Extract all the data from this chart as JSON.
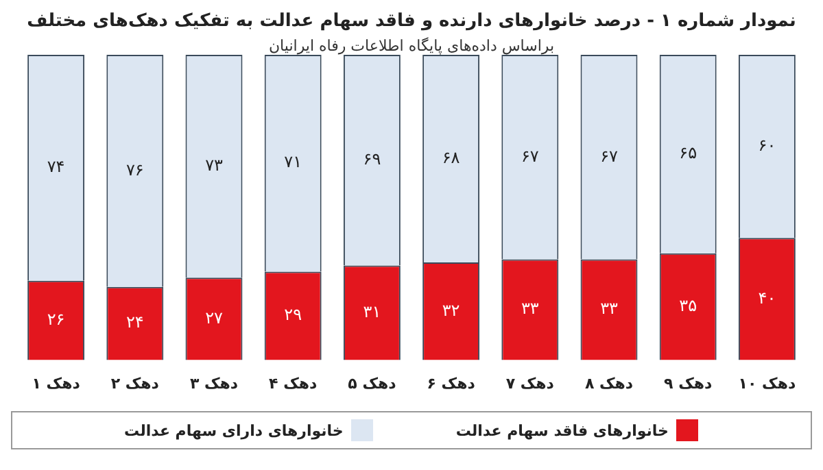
{
  "chart_data": {
    "type": "bar",
    "stacked": true,
    "title": "نمودار شماره ۱ - درصد خانوارهای دارنده و فاقد سهام عدالت به تفکیک دهک‌های مختلف",
    "subtitle": "براساس داده‌های پایگاه اطلاعات رفاه ایرانیان",
    "categories": [
      "دهک ۱",
      "دهک ۲",
      "دهک ۳",
      "دهک ۴",
      "دهک ۵",
      "دهک ۶",
      "دهک ۷",
      "دهک ۸",
      "دهک ۹",
      "دهک ۱۰"
    ],
    "series": [
      {
        "name": "خانوارهای فاقد سهام عدالت",
        "color": "#e3161e",
        "values": [
          26,
          24,
          27,
          29,
          31,
          32,
          33,
          33,
          35,
          40
        ],
        "value_labels": [
          "۲۶",
          "۲۴",
          "۲۷",
          "۲۹",
          "۳۱",
          "۳۲",
          "۳۳",
          "۳۳",
          "۳۵",
          "۴۰"
        ]
      },
      {
        "name": "خانوارهای دارای سهام عدالت",
        "color": "#dce6f2",
        "values": [
          74,
          76,
          73,
          71,
          69,
          68,
          67,
          67,
          65,
          60
        ],
        "value_labels": [
          "۷۴",
          "۷۶",
          "۷۳",
          "۷۱",
          "۶۹",
          "۶۸",
          "۶۷",
          "۶۷",
          "۶۵",
          "۶۰"
        ]
      }
    ],
    "legend": "bottom",
    "grid": false
  }
}
